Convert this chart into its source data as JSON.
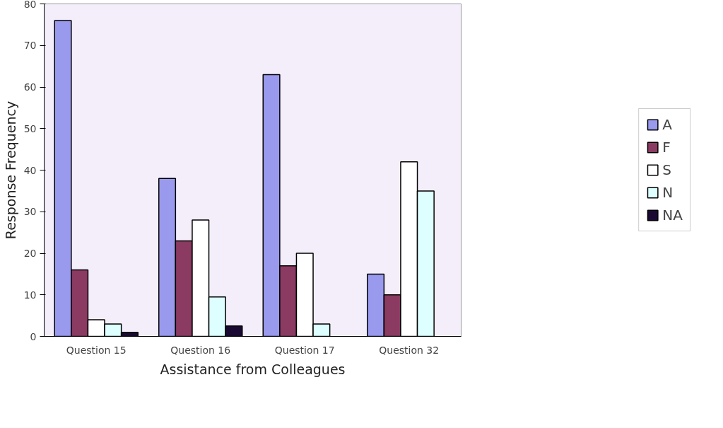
{
  "chart_data": {
    "type": "bar",
    "xlabel": "Assistance from Colleagues",
    "ylabel": "Response Frequency",
    "categories": [
      "Question 15",
      "Question 16",
      "Question 17",
      "Question 32"
    ],
    "series": [
      {
        "name": "A",
        "color": "#9999ee",
        "values": [
          76,
          38,
          63,
          15
        ]
      },
      {
        "name": "F",
        "color": "#8b3a62",
        "values": [
          16,
          23,
          17,
          10
        ]
      },
      {
        "name": "S",
        "color": "#ffffff",
        "values": [
          4,
          28,
          20,
          42
        ]
      },
      {
        "name": "N",
        "color": "#ddffff",
        "values": [
          3,
          9.5,
          3,
          35
        ]
      },
      {
        "name": "NA",
        "color": "#1a0a33",
        "values": [
          1,
          2.5,
          null,
          null
        ]
      }
    ],
    "ylim": [
      0,
      80
    ],
    "yticks": [
      0,
      10,
      20,
      30,
      40,
      50,
      60,
      70,
      80
    ],
    "grid": false,
    "legend": "right"
  }
}
